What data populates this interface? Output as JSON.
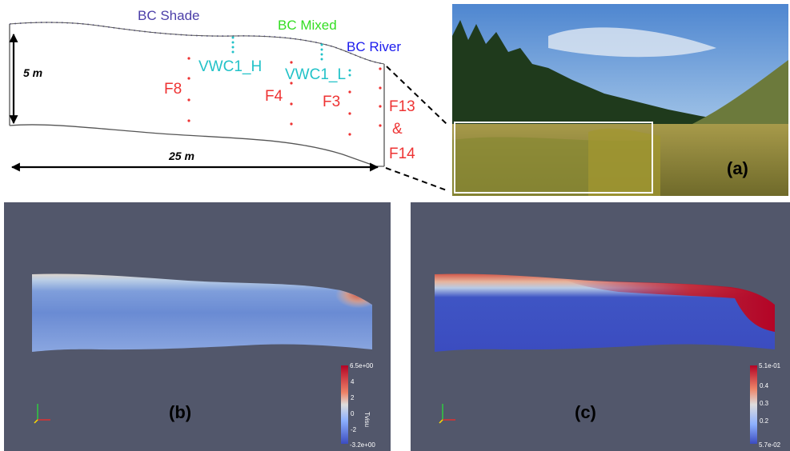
{
  "diagram": {
    "bc_labels": {
      "shade": "BC Shade",
      "mixed": "BC Mixed",
      "river": "BC River"
    },
    "sensor_labels": {
      "vwc1_h": "VWC1_H",
      "vwc1_l": "VWC1_L",
      "f8": "F8",
      "f4": "F4",
      "f3": "F3",
      "f13": "F13",
      "amp": "&",
      "f14": "F14"
    },
    "dimensions": {
      "height": "5 m",
      "length": "25 m"
    },
    "colors": {
      "shade": "#4b3ea8",
      "mixed": "#33dd22",
      "river": "#1a1aee",
      "vwc": "#22c2c8",
      "sensor": "#ee3333"
    }
  },
  "photo": {
    "label": "(a)"
  },
  "panel_b": {
    "label": "(b)",
    "colorbar": {
      "max": "6.5e+00",
      "min": "-3.2e+00",
      "ticks": [
        "4",
        "2",
        "0",
        "-2"
      ],
      "title": "Tvisu"
    }
  },
  "panel_c": {
    "label": "(c)",
    "colorbar": {
      "max": "5.1e-01",
      "min": "5.7e-02",
      "ticks": [
        "0.4",
        "0.3",
        "0.2"
      ]
    }
  }
}
